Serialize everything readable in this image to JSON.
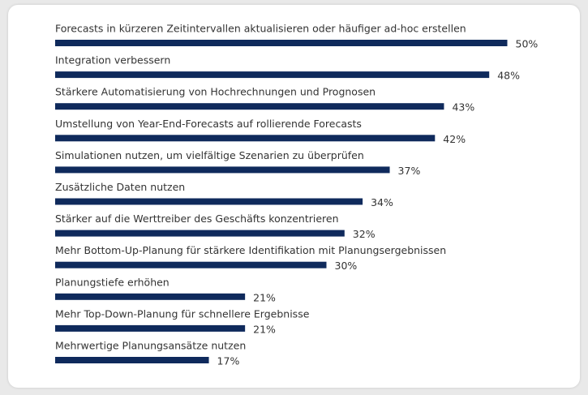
{
  "chart_data": {
    "type": "bar",
    "orientation": "horizontal",
    "color": "#0f2a5c",
    "categories": [
      "Forecasts in kürzeren Zeitintervallen aktualisieren oder häufiger ad-hoc erstellen",
      "Integration verbessern",
      "Stärkere Automatisierung von Hochrechnungen und Prognosen",
      "Umstellung von Year-End-Forecasts auf rollierende Forecasts",
      "Simulationen nutzen, um vielfältige Szenarien zu überprüfen",
      "Zusätzliche Daten nutzen",
      "Stärker auf die Werttreiber des Geschäfts konzentrieren",
      "Mehr Bottom-Up-Planung für stärkere Identifikation mit Planungsergebnissen",
      "Planungstiefe erhöhen",
      "Mehr Top-Down-Planung für schnellere Ergebnisse",
      "Mehrwertige Planungsansätze nutzen"
    ],
    "values": [
      50,
      48,
      43,
      42,
      37,
      34,
      32,
      30,
      21,
      21,
      17
    ],
    "value_labels": [
      "50%",
      "48%",
      "43%",
      "42%",
      "37%",
      "34%",
      "32%",
      "30%",
      "21%",
      "21%",
      "17%"
    ]
  }
}
